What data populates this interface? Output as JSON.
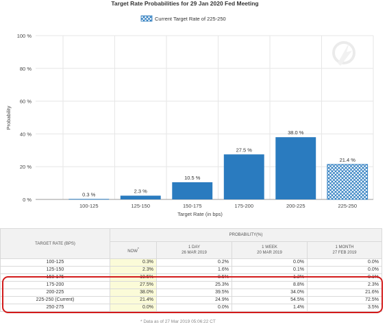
{
  "chart_data": {
    "type": "bar",
    "title": "Target Rate Probabilities for 29 Jan 2020 Fed Meeting",
    "categories": [
      "100-125",
      "125-150",
      "150-175",
      "175-200",
      "200-225",
      "225-250"
    ],
    "values": [
      0.3,
      2.3,
      10.5,
      27.5,
      38.0,
      21.4
    ],
    "data_labels": [
      "0.3 %",
      "2.3 %",
      "10.5 %",
      "27.5 %",
      "38.0 %",
      "21.4 %"
    ],
    "xlabel": "Target Rate (in bps)",
    "ylabel": "Probability",
    "ylim": [
      0,
      100
    ],
    "y_ticks": [
      0,
      20,
      40,
      60,
      80,
      100
    ],
    "y_tick_labels": [
      "0 %",
      "20 %",
      "40 %",
      "60 %",
      "80 %",
      "100 %"
    ],
    "grid": true,
    "legend": {
      "position": "top-center",
      "label": "Current Target Rate of 225-250",
      "pattern_category": "225-250"
    },
    "colors": {
      "bar": "#2a7bbf",
      "pattern": "#2a7bbf",
      "grid": "#e6e6e6"
    }
  },
  "table": {
    "target_rate_header": "TARGET RATE (BPS)",
    "probability_header": "PROBABILITY(%)",
    "columns": [
      {
        "line1": "NOW",
        "mark": "*",
        "line2": ""
      },
      {
        "line1": "1 DAY",
        "line2": "26 MAR 2019"
      },
      {
        "line1": "1 WEEK",
        "line2": "20 MAR 2019"
      },
      {
        "line1": "1 MONTH",
        "line2": "27 FEB 2019"
      }
    ],
    "rows": [
      {
        "rate": "100-125",
        "now": "0.3%",
        "day": "0.2%",
        "week": "0.0%",
        "month": "0.0%"
      },
      {
        "rate": "125-150",
        "now": "2.3%",
        "day": "1.6%",
        "week": "0.1%",
        "month": "0.0%"
      },
      {
        "rate": "150-175",
        "now": "10.5%",
        "day": "8.5%",
        "week": "1.2%",
        "month": "0.1%"
      },
      {
        "rate": "175-200",
        "now": "27.5%",
        "day": "25.3%",
        "week": "8.8%",
        "month": "2.3%"
      },
      {
        "rate": "200-225",
        "now": "38.0%",
        "day": "39.5%",
        "week": "34.0%",
        "month": "21.6%"
      },
      {
        "rate": "225-250 (Current)",
        "now": "21.4%",
        "day": "24.9%",
        "week": "54.5%",
        "month": "72.5%"
      },
      {
        "rate": "250-275",
        "now": "0.0%",
        "day": "0.0%",
        "week": "1.4%",
        "month": "3.5%"
      }
    ],
    "note": "* Data as of 27 Mar 2019 05:06:22 CT"
  }
}
